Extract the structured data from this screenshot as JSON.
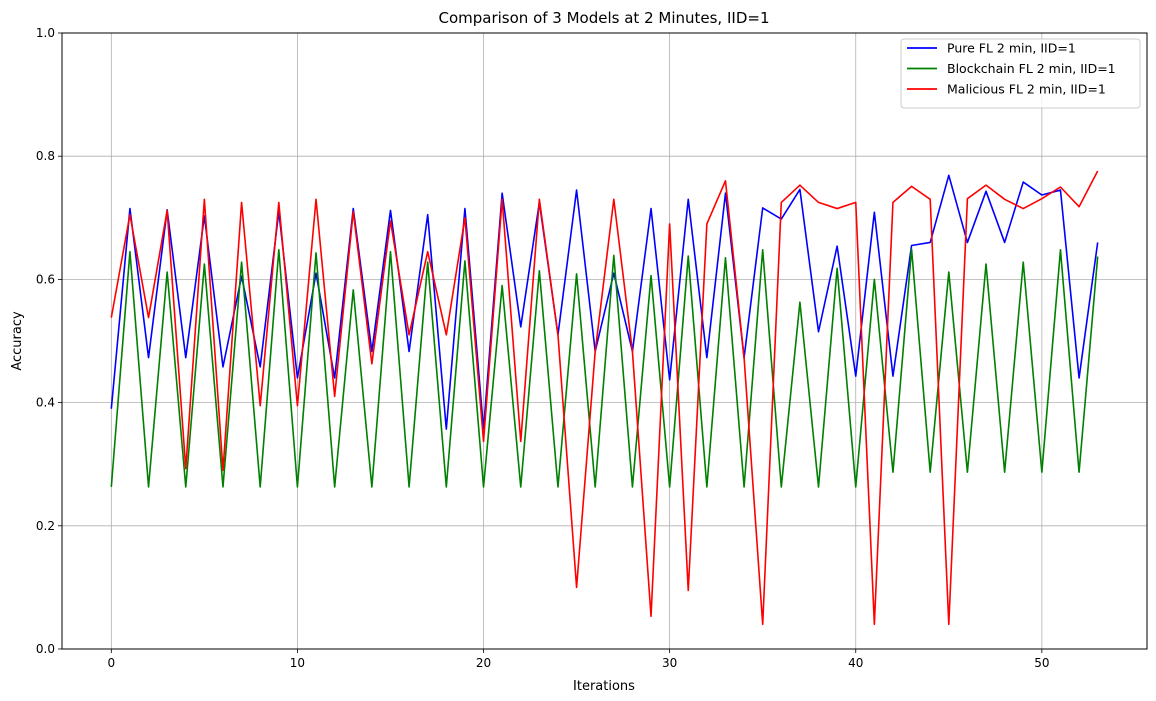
{
  "chart_data": {
    "type": "line",
    "title": "Comparison of 3 Models at 2 Minutes, IID=1",
    "xlabel": "Iterations",
    "ylabel": "Accuracy",
    "xlim": [
      -2.65,
      55.65
    ],
    "ylim": [
      0.0,
      1.0
    ],
    "xticks": [
      "0",
      "10",
      "20",
      "30",
      "40",
      "50"
    ],
    "xtick_values": [
      0,
      10,
      20,
      30,
      40,
      50
    ],
    "yticks": [
      "0.0",
      "0.2",
      "0.4",
      "0.6",
      "0.8",
      "1.0"
    ],
    "ytick_values": [
      0.0,
      0.2,
      0.4,
      0.6,
      0.8,
      1.0
    ],
    "grid": true,
    "legend_position": "top-right",
    "x": [
      0,
      1,
      2,
      3,
      4,
      5,
      6,
      7,
      8,
      9,
      10,
      11,
      12,
      13,
      14,
      15,
      16,
      17,
      18,
      19,
      20,
      21,
      22,
      23,
      24,
      25,
      26,
      27,
      28,
      29,
      30,
      31,
      32,
      33,
      34,
      35,
      36,
      37,
      38,
      39,
      40,
      41,
      42,
      43,
      44,
      45,
      46,
      47,
      48,
      49,
      50,
      51,
      52,
      53
    ],
    "series": [
      {
        "name": "Pure FL 2 min, IID=1",
        "color": "#0000ff",
        "values": [
          0.39,
          0.715,
          0.473,
          0.713,
          0.473,
          0.703,
          0.458,
          0.605,
          0.458,
          0.71,
          0.44,
          0.61,
          0.44,
          0.715,
          0.483,
          0.712,
          0.483,
          0.705,
          0.357,
          0.715,
          0.357,
          0.74,
          0.523,
          0.725,
          0.51,
          0.745,
          0.483,
          0.61,
          0.483,
          0.715,
          0.437,
          0.73,
          0.473,
          0.74,
          0.473,
          0.716,
          0.698,
          0.746,
          0.515,
          0.654,
          0.443,
          0.709,
          0.443,
          0.655,
          0.66,
          0.769,
          0.66,
          0.743,
          0.66,
          0.758,
          0.737,
          0.745,
          0.44,
          0.66
        ]
      },
      {
        "name": "Blockchain FL 2 min, IID=1",
        "color": "#008000",
        "values": [
          0.263,
          0.645,
          0.263,
          0.612,
          0.263,
          0.625,
          0.263,
          0.628,
          0.263,
          0.648,
          0.263,
          0.643,
          0.263,
          0.583,
          0.263,
          0.645,
          0.263,
          0.628,
          0.263,
          0.63,
          0.263,
          0.59,
          0.263,
          0.614,
          0.263,
          0.609,
          0.263,
          0.639,
          0.263,
          0.606,
          0.263,
          0.638,
          0.263,
          0.635,
          0.263,
          0.648,
          0.263,
          0.563,
          0.263,
          0.618,
          0.263,
          0.6,
          0.287,
          0.649,
          0.287,
          0.612,
          0.287,
          0.625,
          0.287,
          0.628,
          0.287,
          0.648,
          0.287,
          0.637
        ]
      },
      {
        "name": "Malicious FL 2 min, IID=1",
        "color": "#ff0000",
        "values": [
          0.538,
          0.705,
          0.538,
          0.712,
          0.293,
          0.73,
          0.29,
          0.725,
          0.395,
          0.725,
          0.395,
          0.73,
          0.41,
          0.71,
          0.463,
          0.695,
          0.51,
          0.645,
          0.51,
          0.7,
          0.337,
          0.73,
          0.337,
          0.73,
          0.51,
          0.1,
          0.483,
          0.73,
          0.483,
          0.053,
          0.69,
          0.095,
          0.69,
          0.76,
          0.473,
          0.04,
          0.725,
          0.753,
          0.725,
          0.715,
          0.725,
          0.04,
          0.725,
          0.751,
          0.73,
          0.04,
          0.731,
          0.753,
          0.73,
          0.715,
          0.731,
          0.75,
          0.718,
          0.776
        ]
      }
    ]
  }
}
